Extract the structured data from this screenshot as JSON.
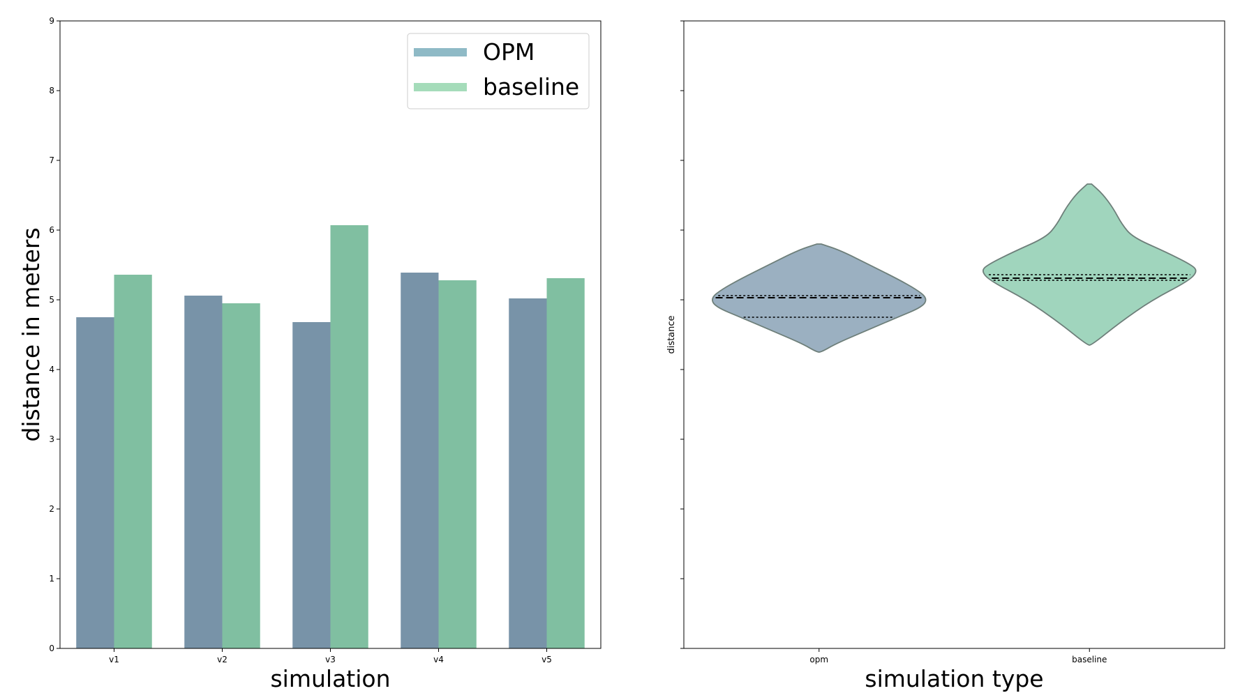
{
  "chart_data": [
    {
      "type": "bar",
      "categories": [
        "v1",
        "v2",
        "v3",
        "v4",
        "v5"
      ],
      "series": [
        {
          "name": "OPM",
          "values": [
            4.75,
            5.06,
            4.68,
            5.39,
            5.02
          ],
          "color": "#7893a8",
          "legend_color": "#8fbac6"
        },
        {
          "name": "baseline",
          "values": [
            5.36,
            4.95,
            6.07,
            5.28,
            5.31
          ],
          "color": "#80bfa1",
          "legend_color": "#a5dcba"
        }
      ],
      "xlabel": "simulation",
      "ylabel": "distance in meters",
      "ylim": [
        0,
        9
      ],
      "yticks": [
        "0",
        "1",
        "2",
        "3",
        "4",
        "5",
        "6",
        "7",
        "8",
        "9"
      ],
      "legend_position": "top-right",
      "grid": false
    },
    {
      "type": "violin",
      "categories": [
        "opm",
        "baseline"
      ],
      "series": [
        {
          "category": "opm",
          "min": 4.25,
          "max": 5.8,
          "q1": 4.75,
          "median": 5.03,
          "q3": 5.06,
          "color": "#9bb0c1"
        },
        {
          "category": "baseline",
          "min": 4.35,
          "max": 6.66,
          "q1": 5.28,
          "median": 5.31,
          "q3": 5.36,
          "color": "#a0d5bd"
        }
      ],
      "xlabel": "simulation type",
      "ylabel": "distance",
      "ylim": [
        0,
        9
      ],
      "grid": false
    }
  ]
}
